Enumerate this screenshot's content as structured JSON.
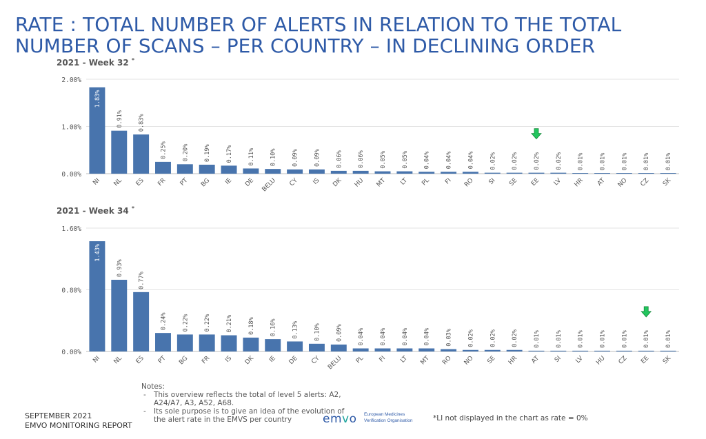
{
  "title": "RATE : TOTAL NUMBER OF ALERTS IN RELATION TO THE TOTAL NUMBER OF SCANS – PER COUNTRY – IN DECLINING ORDER",
  "colors": {
    "bar": "#4874ad",
    "arrow": "#22c55e",
    "title": "#2e5aa7",
    "grid": "#e3e3e3"
  },
  "chart_data": [
    {
      "type": "bar",
      "title": "2021 - Week 32",
      "title_mark": "*",
      "categories": [
        "NI",
        "NL",
        "ES",
        "FR",
        "PT",
        "BG",
        "IE",
        "DE",
        "BELU",
        "CY",
        "IS",
        "DK",
        "HU",
        "MT",
        "LT",
        "PL",
        "FI",
        "RO",
        "SI",
        "SE",
        "EE",
        "LV",
        "HR",
        "AT",
        "NO",
        "CZ",
        "SK"
      ],
      "values": [
        1.83,
        0.91,
        0.83,
        0.25,
        0.2,
        0.19,
        0.17,
        0.11,
        0.1,
        0.09,
        0.09,
        0.06,
        0.06,
        0.05,
        0.05,
        0.04,
        0.04,
        0.04,
        0.02,
        0.02,
        0.02,
        0.02,
        0.01,
        0.01,
        0.01,
        0.01,
        0.01
      ],
      "value_labels": [
        "1.83%",
        "0.91%",
        "0.83%",
        "0.25%",
        "0.20%",
        "0.19%",
        "0.17%",
        "0.11%",
        "0.10%",
        "0.09%",
        "0.09%",
        "0.06%",
        "0.06%",
        "0.05%",
        "0.05%",
        "0.04%",
        "0.04%",
        "0.04%",
        "0.02%",
        "0.02%",
        "0.02%",
        "0.02%",
        "0.01%",
        "0.01%",
        "0.01%",
        "0.01%",
        "0.01%"
      ],
      "ylim": [
        0,
        2.0
      ],
      "yticks": [
        0,
        1.0,
        2.0
      ],
      "ytick_labels": [
        "0.00%",
        "1.00%",
        "2.00%"
      ],
      "grid": true,
      "highlight_index": 20
    },
    {
      "type": "bar",
      "title": "2021 - Week 34",
      "title_mark": "*",
      "categories": [
        "NI",
        "NL",
        "ES",
        "PT",
        "BG",
        "FR",
        "IS",
        "DK",
        "IE",
        "DE",
        "CY",
        "BELU",
        "PL",
        "FI",
        "LT",
        "MT",
        "RO",
        "NO",
        "SE",
        "HR",
        "AT",
        "SI",
        "LV",
        "HU",
        "CZ",
        "EE",
        "SK"
      ],
      "values": [
        1.43,
        0.93,
        0.77,
        0.24,
        0.22,
        0.22,
        0.21,
        0.18,
        0.16,
        0.13,
        0.1,
        0.09,
        0.04,
        0.04,
        0.04,
        0.04,
        0.03,
        0.02,
        0.02,
        0.02,
        0.01,
        0.01,
        0.01,
        0.01,
        0.01,
        0.01,
        0.01
      ],
      "value_labels": [
        "1.43%",
        "0.93%",
        "0.77%",
        "0.24%",
        "0.22%",
        "0.22%",
        "0.21%",
        "0.18%",
        "0.16%",
        "0.13%",
        "0.10%",
        "0.09%",
        "0.04%",
        "0.04%",
        "0.04%",
        "0.04%",
        "0.03%",
        "0.02%",
        "0.02%",
        "0.02%",
        "0.01%",
        "0.01%",
        "0.01%",
        "0.01%",
        "0.01%",
        "0.01%",
        "0.01%"
      ],
      "ylim": [
        0,
        1.6
      ],
      "yticks": [
        0,
        0.8,
        1.6
      ],
      "ytick_labels": [
        "0.00%",
        "0.80%",
        "1.60%"
      ],
      "grid": true,
      "highlight_index": 25
    }
  ],
  "notes": {
    "heading": "Notes:",
    "items": [
      "This overview reflects the total of level 5 alerts: A2, A24/A7, A3, A52, A68.",
      "Its sole purpose is to give an idea of the evolution of the alert rate in the EMVS per country"
    ]
  },
  "footer": {
    "line1": "SEPTEMBER 2021",
    "line2": "EMVO MONITORING REPORT"
  },
  "logo": {
    "word_a": "em",
    "word_b": "v",
    "word_c": "o",
    "subtitle_1": "European Medicines",
    "subtitle_2": "Verification Organisation"
  },
  "footnote": "*LI not displayed in the chart as rate = 0%"
}
